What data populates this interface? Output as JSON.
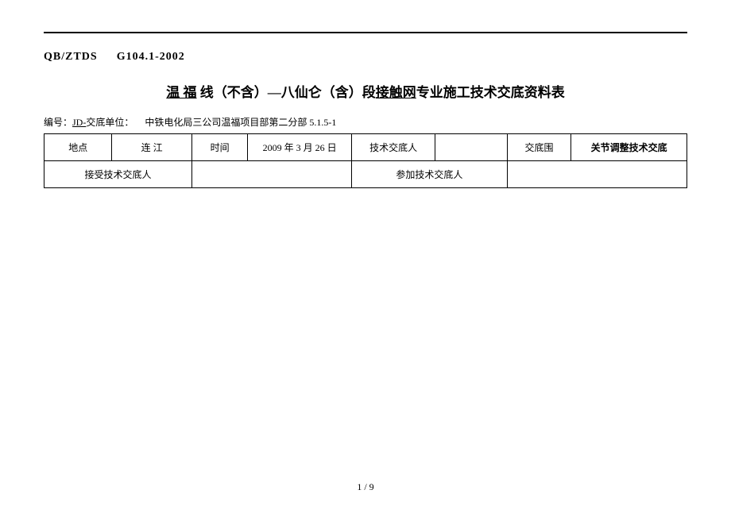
{
  "doc_code": {
    "left": "QB/ZTDS",
    "right": "G104.1-2002"
  },
  "title": {
    "prefix_u": "温 福",
    "mid": " 线（不含）—八仙仑（含）段",
    "net_u": "接触网",
    "suffix": "专业施工技术交底资料表"
  },
  "meta": {
    "label_left": "编号：",
    "jd": "JD-",
    "label_unit": "交底单位：",
    "unit_value": "中铁电化局三公司温福项目部第二分部  5.1.5-1"
  },
  "table": {
    "row1": {
      "c1": "地点",
      "c2": "连  江",
      "c3": "时间",
      "c4": "2009 年 3 月 26 日",
      "c5": "技术交底人",
      "c6": "",
      "c7": "交底围",
      "c8": "关节调整技术交底"
    },
    "row2": {
      "c1": "接受技术交底人",
      "c2": "",
      "c3": "参加技术交底人",
      "c4": ""
    }
  },
  "footer": "1  /  9",
  "widths": {
    "c1": 85,
    "c2": 100,
    "c3": 70,
    "c4": 130,
    "c5": 105,
    "c6": 90,
    "c7": 80,
    "c8": 145
  }
}
